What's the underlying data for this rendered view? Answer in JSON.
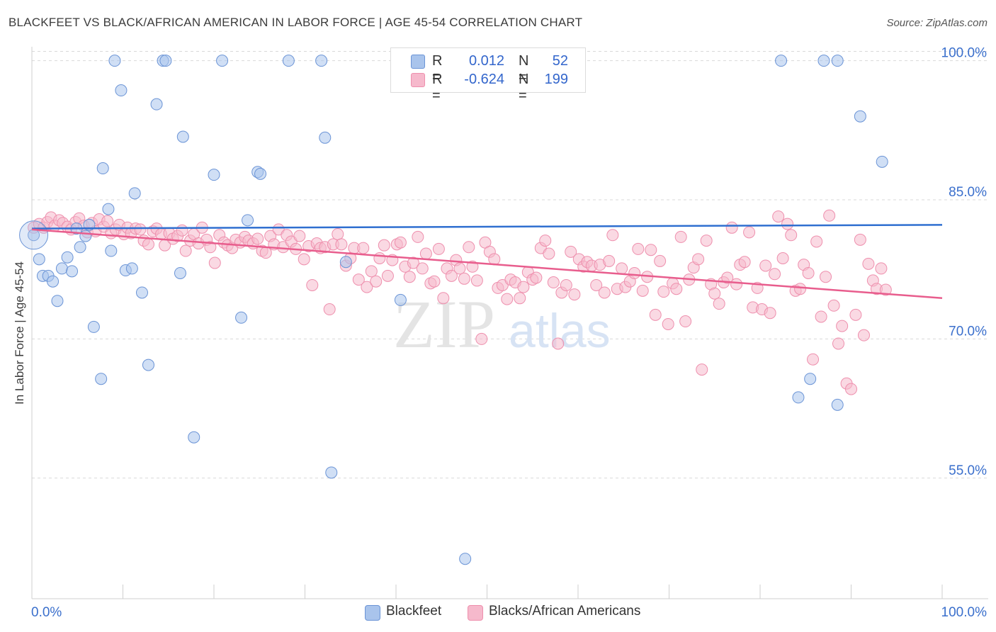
{
  "title": "BLACKFEET VS BLACK/AFRICAN AMERICAN IN LABOR FORCE | AGE 45-54 CORRELATION CHART",
  "source": "Source: ZipAtlas.com",
  "colors": {
    "blue_fill": "#a9c4ec",
    "blue_stroke": "#6b94d6",
    "blue_line": "#2f6fd0",
    "pink_fill": "#f6b9cc",
    "pink_stroke": "#ee8fad",
    "pink_line": "#e85d8d",
    "axis_text": "#3a6fcc",
    "grid": "#d9d9d9"
  },
  "legend": {
    "rows": [
      {
        "r_label": "R =",
        "r_value": "0.012",
        "n_label": "N =",
        "n_value": "52",
        "color": "#a9c4ec"
      },
      {
        "r_label": "R =",
        "r_value": "-0.624",
        "n_label": "N =",
        "n_value": "199",
        "color": "#f6b9cc"
      }
    ]
  },
  "bottom_legend": [
    {
      "label": "Blackfeet",
      "color": "#a9c4ec"
    },
    {
      "label": "Blacks/African Americans",
      "color": "#f6b9cc"
    }
  ],
  "watermark": {
    "zip": "ZIP",
    "atlas": "atlas"
  },
  "chart_data": {
    "type": "scatter",
    "title": "BLACKFEET VS BLACK/AFRICAN AMERICAN IN LABOR FORCE | AGE 45-54 CORRELATION CHART",
    "xlabel": "",
    "ylabel": "In Labor Force | Age 45-54",
    "xlim": [
      0,
      100
    ],
    "ylim": [
      42,
      101.5
    ],
    "x_tick_labels": [
      "0.0%",
      "100.0%"
    ],
    "y_ticks": [
      55,
      70,
      85,
      100
    ],
    "y_tick_labels": [
      "55.0%",
      "70.0%",
      "85.0%",
      "100.0%"
    ],
    "series": [
      {
        "name": "Blackfeet",
        "color": "#a9c4ec",
        "trend": {
          "x": [
            0,
            100
          ],
          "y": [
            81.9,
            82.3
          ]
        },
        "points": [
          [
            0.2,
            81.2
          ],
          [
            0.8,
            78.6
          ],
          [
            1.2,
            76.8
          ],
          [
            1.8,
            76.8
          ],
          [
            2.3,
            76.2
          ],
          [
            2.8,
            74.1
          ],
          [
            3.3,
            77.6
          ],
          [
            3.9,
            78.8
          ],
          [
            4.4,
            77.3
          ],
          [
            4.9,
            81.9
          ],
          [
            5.3,
            79.9
          ],
          [
            5.9,
            81.1
          ],
          [
            6.3,
            82.3
          ],
          [
            6.8,
            71.3
          ],
          [
            7.6,
            65.7
          ],
          [
            7.8,
            88.4
          ],
          [
            8.4,
            84.0
          ],
          [
            8.7,
            79.5
          ],
          [
            9.1,
            100.0
          ],
          [
            9.8,
            96.8
          ],
          [
            10.3,
            77.4
          ],
          [
            11.0,
            77.6
          ],
          [
            11.3,
            85.7
          ],
          [
            12.1,
            75.0
          ],
          [
            12.8,
            67.2
          ],
          [
            13.7,
            95.3
          ],
          [
            14.4,
            100.0
          ],
          [
            14.7,
            100.0
          ],
          [
            16.3,
            77.1
          ],
          [
            16.6,
            91.8
          ],
          [
            17.8,
            59.4
          ],
          [
            20.0,
            87.7
          ],
          [
            20.9,
            100.0
          ],
          [
            23.0,
            72.3
          ],
          [
            23.7,
            82.8
          ],
          [
            24.8,
            88.0
          ],
          [
            25.1,
            87.8
          ],
          [
            28.2,
            100.0
          ],
          [
            31.8,
            100.0
          ],
          [
            32.2,
            91.7
          ],
          [
            32.9,
            55.6
          ],
          [
            34.5,
            78.3
          ],
          [
            40.5,
            74.2
          ],
          [
            47.6,
            46.3
          ],
          [
            82.3,
            100.0
          ],
          [
            84.2,
            63.7
          ],
          [
            85.5,
            65.7
          ],
          [
            87.0,
            100.0
          ],
          [
            88.5,
            62.9
          ],
          [
            88.5,
            100.0
          ],
          [
            91.0,
            94.0
          ],
          [
            93.4,
            89.1
          ]
        ]
      },
      {
        "name": "Blacks/African Americans",
        "color": "#f6b9cc",
        "trend": {
          "x": [
            0,
            100
          ],
          "y": [
            81.8,
            74.4
          ]
        },
        "points": [
          [
            0.2,
            82.0
          ],
          [
            0.8,
            82.4
          ],
          [
            1.3,
            82.0
          ],
          [
            1.7,
            82.6
          ],
          [
            2.1,
            83.1
          ],
          [
            2.5,
            82.2
          ],
          [
            3.0,
            82.8
          ],
          [
            3.4,
            82.5
          ],
          [
            3.9,
            82.1
          ],
          [
            4.3,
            81.8
          ],
          [
            4.8,
            82.6
          ],
          [
            5.2,
            83.0
          ],
          [
            5.7,
            82.2
          ],
          [
            6.1,
            81.5
          ],
          [
            6.6,
            82.5
          ],
          [
            7.0,
            81.6
          ],
          [
            7.4,
            82.9
          ],
          [
            7.9,
            82.1
          ],
          [
            8.3,
            82.7
          ],
          [
            8.7,
            81.4
          ],
          [
            9.2,
            81.8
          ],
          [
            9.6,
            82.3
          ],
          [
            10.1,
            81.3
          ],
          [
            10.5,
            82.0
          ],
          [
            10.9,
            81.4
          ],
          [
            11.4,
            81.9
          ],
          [
            11.9,
            81.8
          ],
          [
            12.3,
            80.6
          ],
          [
            12.8,
            80.2
          ],
          [
            13.3,
            81.6
          ],
          [
            13.7,
            81.9
          ],
          [
            14.2,
            81.3
          ],
          [
            14.6,
            80.1
          ],
          [
            15.1,
            81.4
          ],
          [
            15.5,
            80.8
          ],
          [
            16.0,
            81.1
          ],
          [
            16.5,
            81.7
          ],
          [
            16.9,
            79.5
          ],
          [
            17.4,
            80.6
          ],
          [
            17.8,
            81.3
          ],
          [
            18.3,
            80.3
          ],
          [
            18.7,
            82.0
          ],
          [
            19.2,
            80.7
          ],
          [
            19.6,
            79.9
          ],
          [
            20.1,
            78.2
          ],
          [
            20.6,
            81.2
          ],
          [
            21.1,
            80.4
          ],
          [
            21.5,
            80.1
          ],
          [
            22.0,
            79.8
          ],
          [
            22.4,
            80.7
          ],
          [
            22.9,
            80.4
          ],
          [
            23.4,
            81.0
          ],
          [
            23.8,
            80.6
          ],
          [
            24.3,
            80.3
          ],
          [
            24.8,
            80.8
          ],
          [
            25.3,
            79.5
          ],
          [
            25.7,
            79.3
          ],
          [
            26.2,
            81.1
          ],
          [
            26.6,
            80.2
          ],
          [
            27.1,
            81.8
          ],
          [
            27.6,
            79.9
          ],
          [
            28.0,
            81.2
          ],
          [
            28.5,
            80.5
          ],
          [
            29.0,
            79.7
          ],
          [
            29.4,
            81.1
          ],
          [
            29.9,
            78.6
          ],
          [
            30.4,
            80.0
          ],
          [
            30.8,
            75.8
          ],
          [
            31.3,
            80.3
          ],
          [
            31.7,
            79.8
          ],
          [
            32.2,
            79.9
          ],
          [
            32.7,
            73.2
          ],
          [
            33.1,
            80.2
          ],
          [
            33.6,
            81.3
          ],
          [
            34.0,
            80.2
          ],
          [
            34.5,
            77.9
          ],
          [
            35.0,
            78.7
          ],
          [
            35.4,
            79.8
          ],
          [
            35.9,
            76.4
          ],
          [
            36.4,
            79.8
          ],
          [
            36.8,
            75.6
          ],
          [
            37.3,
            77.3
          ],
          [
            37.8,
            76.2
          ],
          [
            38.2,
            78.7
          ],
          [
            38.7,
            80.1
          ],
          [
            39.1,
            76.8
          ],
          [
            39.6,
            78.5
          ],
          [
            40.1,
            80.2
          ],
          [
            40.5,
            80.4
          ],
          [
            41.0,
            77.8
          ],
          [
            41.5,
            76.7
          ],
          [
            41.9,
            78.2
          ],
          [
            42.4,
            81.0
          ],
          [
            42.9,
            77.6
          ],
          [
            43.3,
            79.2
          ],
          [
            43.8,
            76.0
          ],
          [
            44.2,
            76.2
          ],
          [
            44.7,
            79.7
          ],
          [
            45.2,
            74.4
          ],
          [
            45.6,
            77.6
          ],
          [
            46.1,
            76.8
          ],
          [
            46.6,
            78.5
          ],
          [
            47.0,
            77.6
          ],
          [
            47.5,
            76.5
          ],
          [
            48.0,
            79.9
          ],
          [
            48.4,
            77.8
          ],
          [
            48.9,
            76.3
          ],
          [
            49.4,
            70.0
          ],
          [
            49.8,
            80.4
          ],
          [
            50.3,
            79.4
          ],
          [
            50.8,
            78.6
          ],
          [
            51.2,
            75.5
          ],
          [
            51.7,
            75.8
          ],
          [
            52.2,
            74.3
          ],
          [
            52.6,
            76.4
          ],
          [
            53.1,
            76.1
          ],
          [
            53.6,
            74.4
          ],
          [
            54.0,
            75.6
          ],
          [
            54.5,
            77.2
          ],
          [
            55.0,
            76.4
          ],
          [
            55.4,
            76.6
          ],
          [
            55.9,
            79.8
          ],
          [
            56.4,
            80.6
          ],
          [
            56.8,
            79.2
          ],
          [
            57.3,
            76.1
          ],
          [
            57.8,
            69.5
          ],
          [
            58.2,
            75.0
          ],
          [
            58.7,
            75.8
          ],
          [
            59.2,
            79.4
          ],
          [
            59.6,
            74.8
          ],
          [
            60.1,
            78.6
          ],
          [
            60.6,
            77.8
          ],
          [
            61.0,
            78.3
          ],
          [
            61.5,
            77.9
          ],
          [
            62.0,
            75.8
          ],
          [
            62.4,
            78.0
          ],
          [
            62.9,
            75.0
          ],
          [
            63.4,
            78.4
          ],
          [
            63.8,
            81.2
          ],
          [
            64.3,
            75.4
          ],
          [
            64.8,
            77.6
          ],
          [
            65.2,
            75.6
          ],
          [
            65.7,
            76.2
          ],
          [
            66.2,
            77.1
          ],
          [
            66.6,
            79.7
          ],
          [
            67.1,
            75.2
          ],
          [
            67.6,
            76.7
          ],
          [
            68.0,
            79.6
          ],
          [
            68.5,
            72.6
          ],
          [
            69.0,
            78.4
          ],
          [
            69.4,
            75.1
          ],
          [
            69.9,
            71.6
          ],
          [
            70.4,
            76.0
          ],
          [
            70.8,
            75.4
          ],
          [
            71.3,
            81.0
          ],
          [
            71.8,
            71.9
          ],
          [
            72.2,
            76.4
          ],
          [
            72.7,
            77.7
          ],
          [
            73.2,
            78.6
          ],
          [
            73.6,
            66.7
          ],
          [
            74.1,
            80.6
          ],
          [
            74.6,
            75.9
          ],
          [
            75.0,
            74.9
          ],
          [
            75.5,
            73.8
          ],
          [
            76.0,
            76.1
          ],
          [
            76.4,
            76.6
          ],
          [
            76.9,
            82.0
          ],
          [
            77.4,
            75.9
          ],
          [
            77.8,
            78.0
          ],
          [
            78.3,
            78.3
          ],
          [
            78.8,
            81.5
          ],
          [
            79.2,
            73.4
          ],
          [
            79.7,
            75.5
          ],
          [
            80.2,
            73.2
          ],
          [
            80.6,
            77.9
          ],
          [
            81.1,
            72.8
          ],
          [
            81.6,
            77.0
          ],
          [
            82.0,
            83.2
          ],
          [
            82.5,
            78.7
          ],
          [
            83.0,
            82.4
          ],
          [
            83.4,
            81.2
          ],
          [
            83.9,
            75.2
          ],
          [
            84.4,
            75.4
          ],
          [
            84.8,
            78.0
          ],
          [
            85.3,
            77.1
          ],
          [
            85.8,
            67.8
          ],
          [
            86.2,
            80.5
          ],
          [
            86.7,
            72.4
          ],
          [
            87.2,
            76.7
          ],
          [
            87.6,
            83.3
          ],
          [
            88.1,
            73.6
          ],
          [
            88.6,
            69.5
          ],
          [
            89.0,
            71.4
          ],
          [
            89.5,
            65.2
          ],
          [
            90.0,
            64.6
          ],
          [
            90.5,
            72.6
          ],
          [
            91.0,
            80.7
          ],
          [
            91.4,
            70.4
          ],
          [
            91.9,
            78.1
          ],
          [
            92.4,
            76.3
          ],
          [
            92.8,
            75.4
          ],
          [
            93.3,
            77.6
          ],
          [
            93.8,
            75.3
          ]
        ]
      }
    ]
  }
}
